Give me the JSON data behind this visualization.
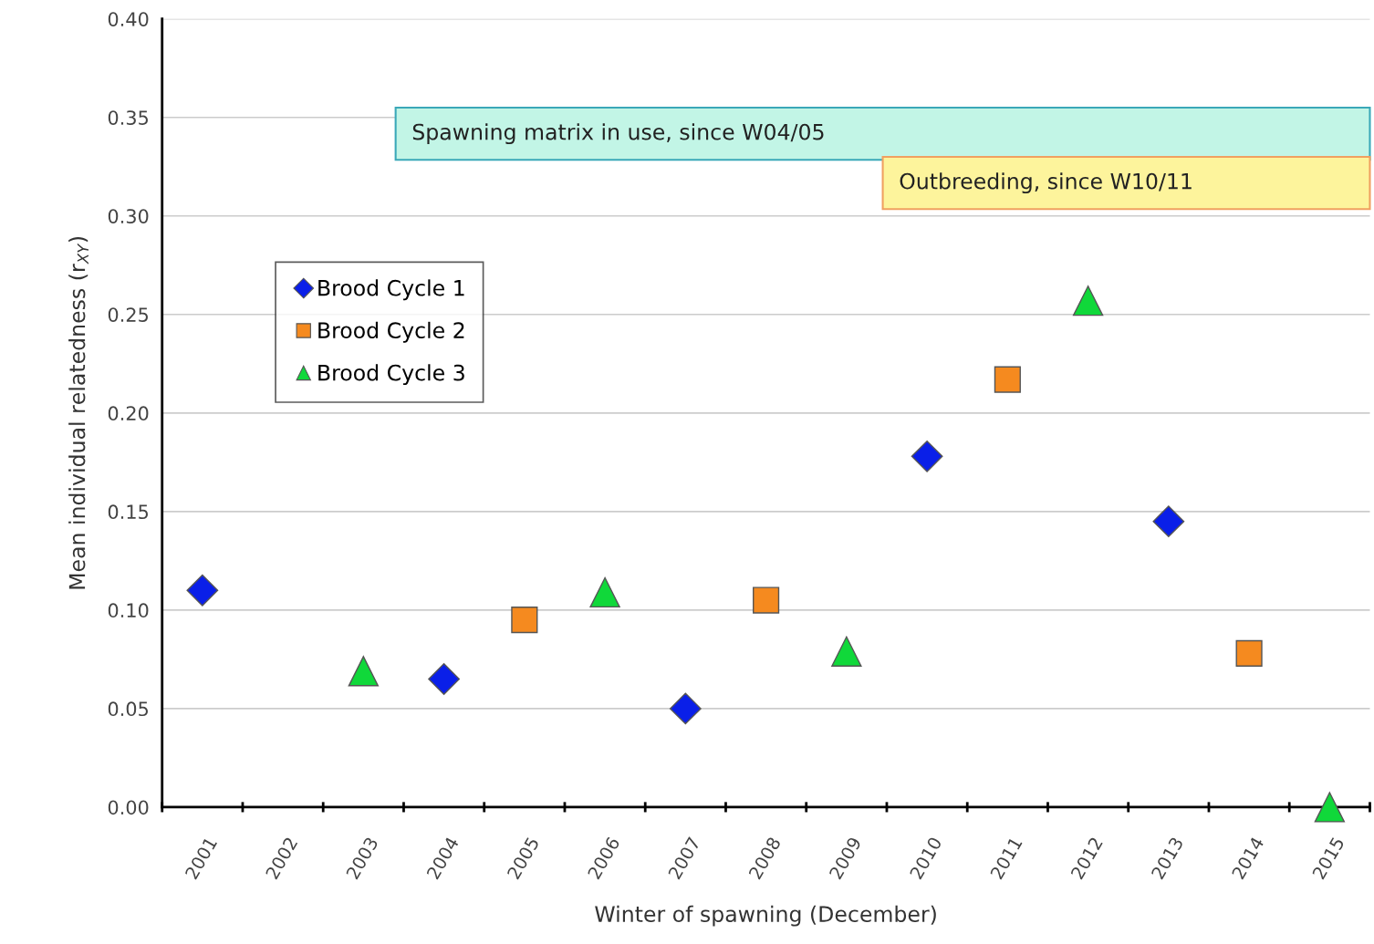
{
  "chart_data": {
    "type": "scatter",
    "xlabel": "Winter of spawning (December)",
    "ylabel": "Mean individual relatedness (r$_{XY}$)",
    "categories": [
      "2001",
      "2002",
      "2003",
      "2004",
      "2005",
      "2006",
      "2007",
      "2008",
      "2009",
      "2010",
      "2011",
      "2012",
      "2013",
      "2014",
      "2015"
    ],
    "series": [
      {
        "name": "Brood Cycle 1",
        "color": "#0a1fe8",
        "marker": "diamond",
        "values": [
          0.11,
          null,
          null,
          0.065,
          null,
          null,
          0.05,
          null,
          null,
          0.178,
          null,
          null,
          0.145,
          null,
          null
        ]
      },
      {
        "name": "Brood Cycle 2",
        "color": "#f58a1f",
        "marker": "square",
        "values": [
          null,
          null,
          null,
          null,
          0.095,
          null,
          null,
          0.105,
          null,
          null,
          0.217,
          null,
          null,
          0.078,
          null
        ]
      },
      {
        "name": "Brood Cycle 3",
        "color": "#10d83a",
        "marker": "triangle",
        "values": [
          null,
          null,
          0.069,
          null,
          null,
          0.109,
          null,
          null,
          0.079,
          null,
          null,
          0.257,
          null,
          null,
          0.0
        ]
      }
    ],
    "ylim": [
      0,
      0.4
    ],
    "yticks": [
      {
        "value": 0,
        "label": "0.00"
      },
      {
        "value": 0.05,
        "label": "0.05"
      },
      {
        "value": 0.1,
        "label": "0.10"
      },
      {
        "value": 0.15,
        "label": "0.15"
      },
      {
        "value": 0.2,
        "label": "0.20"
      },
      {
        "value": 0.25,
        "label": "0.25"
      },
      {
        "value": 0.3,
        "label": "0.30"
      },
      {
        "value": 0.35,
        "label": "0.35"
      },
      {
        "value": 0.4,
        "label": "0.40"
      }
    ],
    "grid": "y",
    "legend": "top left",
    "annotations": [
      "Spawning matrix in use, since W04/05",
      "Outbreeding, since W10/11"
    ]
  }
}
